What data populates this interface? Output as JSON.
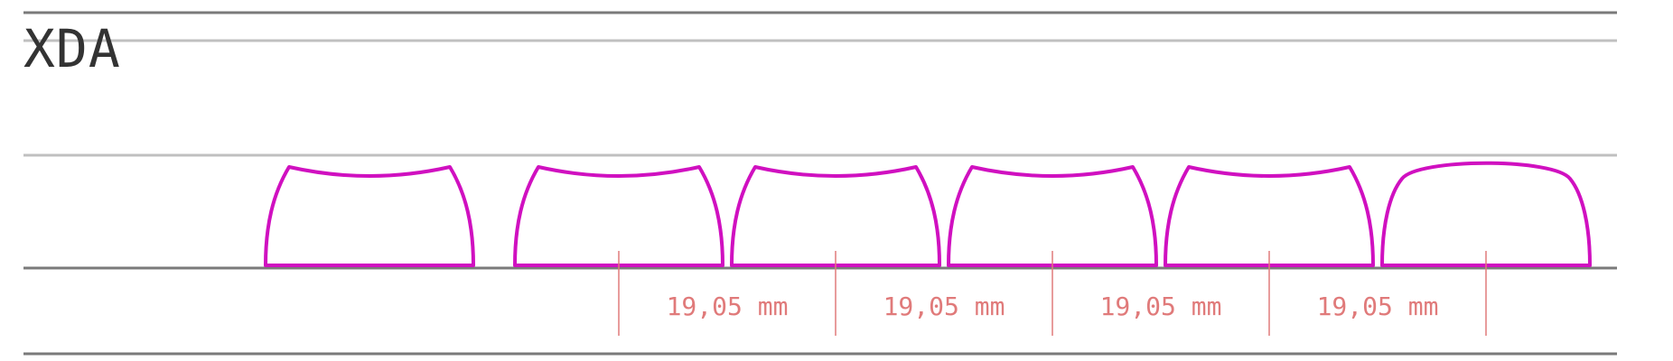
{
  "title": "XDA",
  "colors": {
    "keycap_outline": "#d010c0",
    "dimension": "#e07a7a",
    "line_dark": "#7a7a7a",
    "line_light": "#c0c0c0",
    "title": "#333333"
  },
  "keycaps": [
    {
      "id": "key-1",
      "profile": "concave"
    },
    {
      "id": "key-2",
      "profile": "concave"
    },
    {
      "id": "key-3",
      "profile": "concave"
    },
    {
      "id": "key-4",
      "profile": "concave"
    },
    {
      "id": "key-5",
      "profile": "concave"
    },
    {
      "id": "key-6",
      "profile": "convex"
    }
  ],
  "dimensions": [
    {
      "label": "19,05 mm"
    },
    {
      "label": "19,05 mm"
    },
    {
      "label": "19,05 mm"
    },
    {
      "label": "19,05 mm"
    }
  ]
}
